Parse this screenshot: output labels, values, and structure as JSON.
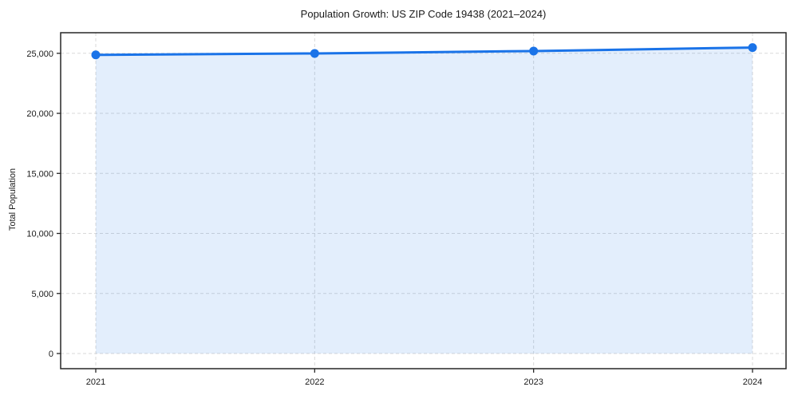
{
  "chart_data": {
    "type": "area",
    "title": "Population Growth: US ZIP Code 19438 (2021–2024)",
    "xlabel": "",
    "ylabel": "Total Population",
    "categories": [
      "2021",
      "2022",
      "2023",
      "2024"
    ],
    "x": [
      2021,
      2022,
      2023,
      2024
    ],
    "series": [
      {
        "name": "Total Population",
        "values": [
          24870,
          24990,
          25190,
          25480
        ]
      }
    ],
    "y_ticks": [
      0,
      5000,
      10000,
      15000,
      20000,
      25000
    ],
    "y_tick_labels": [
      "0",
      "5,000",
      "10,000",
      "15,000",
      "20,000",
      "25,000"
    ],
    "ylim": [
      -1270,
      26710
    ],
    "grid": "dashed-both-axes",
    "legend": "none",
    "marker": "circle",
    "colors": {
      "line": "#1a73e8",
      "marker": "#1a73e8",
      "fill": "#1a73e8",
      "fill_opacity": "0.12",
      "grid": "#d9d9d9",
      "spine": "#262626",
      "text": "#1a1a1a",
      "background": "#ffffff"
    }
  }
}
